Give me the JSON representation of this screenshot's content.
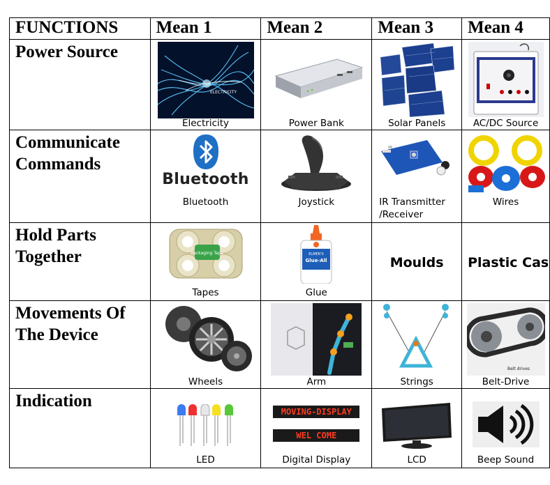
{
  "header": {
    "functions": "FUNCTIONS",
    "mean1": "Mean 1",
    "mean2": "Mean 2",
    "mean3": "Mean 3",
    "mean4": "Mean 4"
  },
  "rows": [
    {
      "function_line1": "Power Source",
      "function_line2": "",
      "means": [
        "Electricity",
        "Power Bank",
        "Solar Panels",
        "AC/DC Source"
      ]
    },
    {
      "function_line1": "Communicate",
      "function_line2": "Commands",
      "means": [
        "Bluetooth",
        "Joystick",
        "IR Transmitter",
        "Wires"
      ],
      "ir_line2": "/Receiver",
      "bluetooth_logo_text": "Bluetooth"
    },
    {
      "function_line1": "Hold Parts",
      "function_line2": "Together",
      "means": [
        "Tapes",
        "Glue",
        "Moulds",
        "Plastic Case"
      ],
      "tape_label": "Packaging Tape",
      "glue_label_top": "ELMER'S",
      "glue_label": "Glue-All"
    },
    {
      "function_line1": "Movements Of",
      "function_line2": "The Device",
      "means": [
        "Wheels",
        "Arm",
        "Strings",
        "Belt-Drive"
      ],
      "belt_inner": "Belt drives"
    },
    {
      "function_line1": "Indication",
      "function_line2": "",
      "means": [
        "LED",
        "Digital Display",
        "LCD",
        "Beep Sound"
      ],
      "display_line1": "MOVING-DISPLAY",
      "display_line2": "WEL COME"
    }
  ],
  "electricity_image_text": "ELECTRICITY",
  "colors": {
    "border": "#000000",
    "bluetooth_blue": "#1f6fc5",
    "display_red": "#ff3b1f"
  }
}
